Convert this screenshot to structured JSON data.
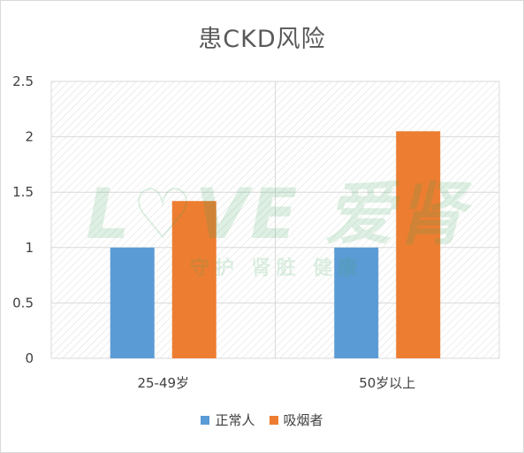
{
  "chart_data": {
    "type": "bar",
    "title": "患CKD风险",
    "categories": [
      "25-49岁",
      "50岁以上"
    ],
    "series": [
      {
        "name": "正常人",
        "values": [
          1,
          1
        ],
        "color": "#5b9bd5"
      },
      {
        "name": "吸烟者",
        "values": [
          1.42,
          2.05
        ],
        "color": "#ed7d31"
      }
    ],
    "xlabel": "",
    "ylabel": "",
    "ylim": [
      0,
      2.5
    ],
    "yticks": [
      "0",
      "0.5",
      "1",
      "1.5",
      "2",
      "2.5"
    ],
    "grid": true,
    "legend_position": "bottom",
    "plot_background": "hatched"
  },
  "watermark": {
    "main": "L♡VE 爱肾",
    "sub": "守护 肾脏 健康"
  }
}
